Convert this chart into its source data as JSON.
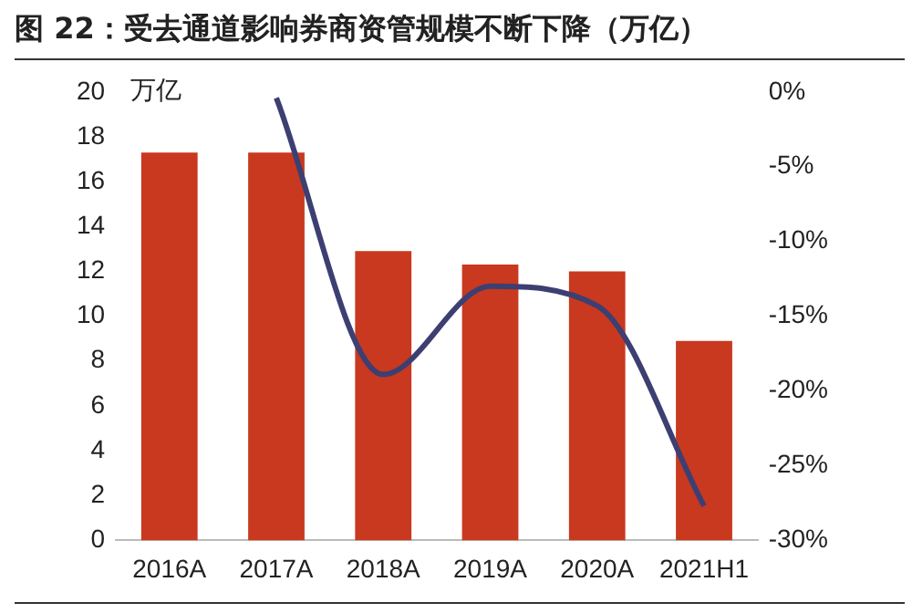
{
  "chart_data": {
    "type": "bar",
    "title": "图 22：受去通道影响券商资管规模不断下降（万亿）",
    "ylabel": "万亿",
    "categories": [
      "2016A",
      "2017A",
      "2018A",
      "2019A",
      "2020A",
      "2021H1"
    ],
    "series": [
      {
        "color": "#c8391f",
        "values": [
          17.3,
          17.3,
          12.9,
          12.3,
          12.0,
          8.9
        ]
      },
      {
        "type": "line",
        "axis": "y2",
        "color": "#3d3f72",
        "values": [
          null,
          -0.4,
          -18.9,
          -13.0,
          -14.3,
          -27.7
        ]
      }
    ],
    "ylim": [
      0,
      20
    ],
    "yticks": [
      0,
      2,
      4,
      6,
      8,
      10,
      12,
      14,
      16,
      18,
      20
    ],
    "y2lim": [
      -30,
      0
    ],
    "y2ticks": [
      {
        "value": 0,
        "label": "0%"
      },
      {
        "value": -5,
        "label": "-5%"
      },
      {
        "value": -10,
        "label": "-10%"
      },
      {
        "value": -15,
        "label": "-15%"
      },
      {
        "value": -20,
        "label": "-20%"
      },
      {
        "value": -25,
        "label": "-25%"
      },
      {
        "value": -30,
        "label": "-30%"
      }
    ],
    "grid": false,
    "legend": false
  }
}
